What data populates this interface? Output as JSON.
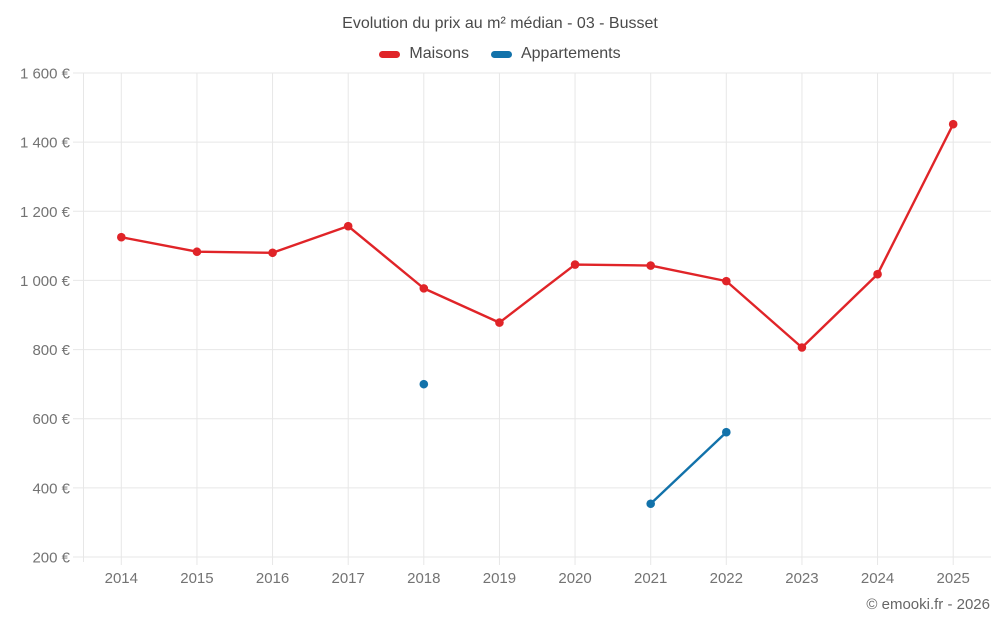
{
  "page": {
    "title": "Evolution du prix au m² médian - 03 - Busset",
    "footer_credit": "© emooki.fr - 2026"
  },
  "chart_data": {
    "type": "line",
    "title": "Evolution du prix au m² médian - 03 - Busset",
    "x": [
      2014,
      2015,
      2016,
      2017,
      2018,
      2019,
      2020,
      2021,
      2022,
      2023,
      2024,
      2025
    ],
    "series": [
      {
        "name": "Maisons",
        "color": "#e02428",
        "values": [
          1125,
          1083,
          1080,
          1157,
          977,
          878,
          1046,
          1043,
          998,
          806,
          1018,
          1452
        ]
      },
      {
        "name": "Appartements",
        "color": "#1272aa",
        "values": [
          null,
          null,
          null,
          null,
          700,
          null,
          null,
          354,
          561,
          null,
          null,
          null
        ]
      }
    ],
    "ylim": [
      200,
      1600
    ],
    "ytick_step": 200,
    "y_tick_labels": [
      "200 €",
      "400 €",
      "600 €",
      "800 €",
      "1 000 €",
      "1 200 €",
      "1 400 €",
      "1 600 €"
    ],
    "xlabel": "",
    "ylabel": "",
    "grid": true,
    "legend_position": "top",
    "colors": {
      "grid": "#e7e7e7",
      "tick_text": "#737373",
      "title_text": "#4a4a4a"
    }
  }
}
